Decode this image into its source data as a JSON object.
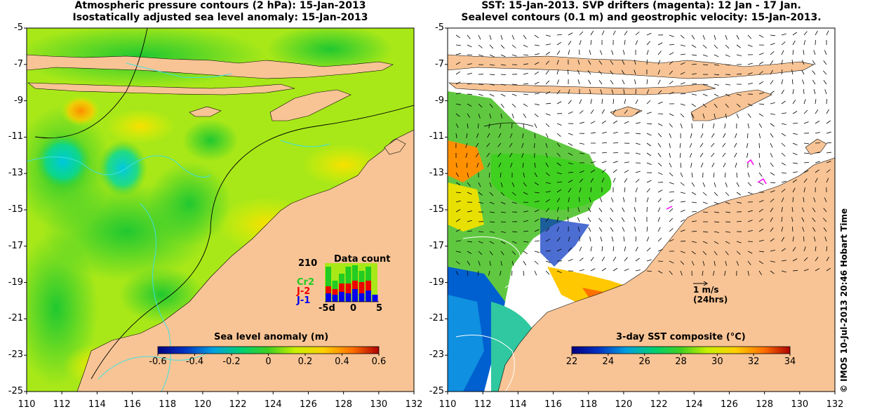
{
  "left_panel": {
    "title_line1": "Atmospheric pressure contours (2 hPa): 15-Jan-2013",
    "title_line2": "Isostatically adjusted sea level anomaly: 15-Jan-2013",
    "colorbar": {
      "label": "Sea level anomaly (m)",
      "ticks": [
        "-0.6",
        "-0.4",
        "-0.2",
        "0",
        "0.2",
        "0.4",
        "0.6"
      ],
      "range": [
        -0.6,
        0.6
      ]
    },
    "data_count": {
      "title": "Data count",
      "max_label": "210",
      "series": [
        {
          "name": "Cr2",
          "color": "#22cc22"
        },
        {
          "name": "J-2",
          "color": "#ee0000"
        },
        {
          "name": "J-1",
          "color": "#0000ee"
        }
      ],
      "x_ticks": [
        "-5d",
        "0",
        "5"
      ]
    }
  },
  "right_panel": {
    "title_line1": "SST: 15-Jan-2013. SVP drifters (magenta): 12 Jan - 17 Jan.",
    "title_line2": "Sealevel contours (0.1 m) and geostrophic velocity: 15-Jan-2013.",
    "colorbar": {
      "label": "3-day SST composite (°C)",
      "ticks": [
        "22",
        "24",
        "26",
        "28",
        "30",
        "32",
        "34"
      ],
      "range": [
        22,
        34
      ]
    },
    "velocity_scale": {
      "line1": "1 m/s",
      "line2": "(24hrs)"
    }
  },
  "axes": {
    "y_ticks": [
      "-5",
      "-7",
      "-9",
      "-11",
      "-13",
      "-15",
      "-17",
      "-19",
      "-21",
      "-23",
      "-25"
    ],
    "x_ticks": [
      "110",
      "112",
      "114",
      "116",
      "118",
      "120",
      "122",
      "124",
      "126",
      "128",
      "130",
      "132"
    ],
    "lat_range": [
      -25,
      -5
    ],
    "lon_range": [
      110,
      132
    ]
  },
  "credit": "© IMOS 10-Jul-2013 20:46 Hobart Time",
  "colors": {
    "land": "#f8c495",
    "missing": "#ffffff",
    "contour_pressure": "#000000",
    "contour_sealevel": "#40e0e0"
  }
}
